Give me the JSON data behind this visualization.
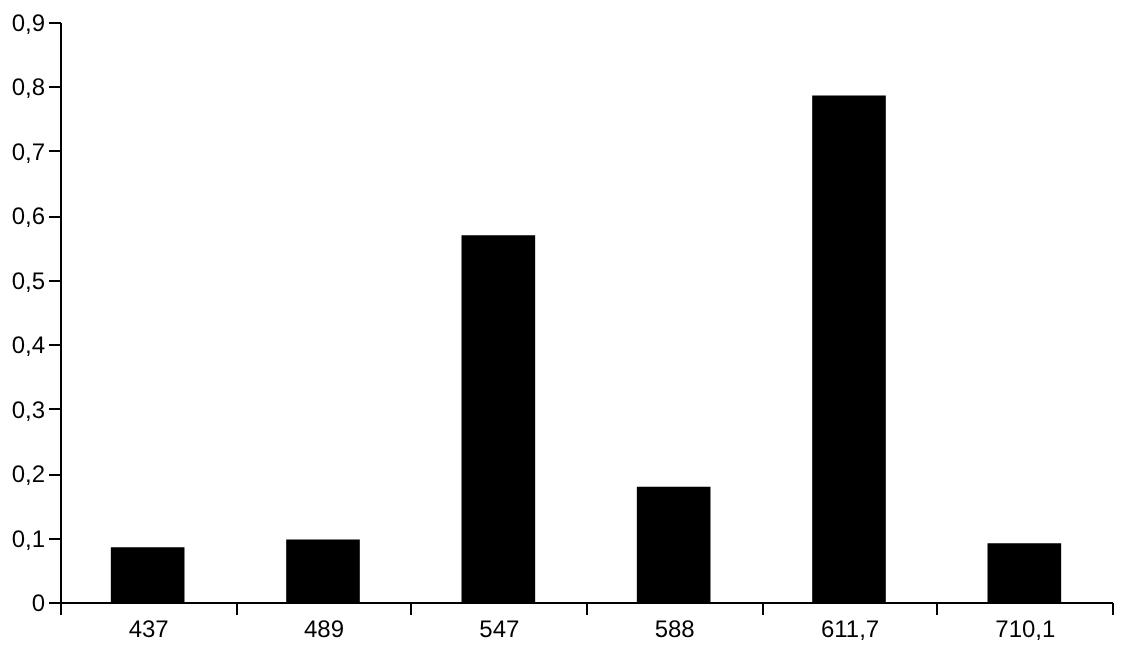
{
  "chart_data": {
    "type": "bar",
    "categories": [
      "437",
      "489",
      "547",
      "588",
      "611,7",
      "710,1"
    ],
    "values": [
      0.085,
      0.097,
      0.569,
      0.179,
      0.786,
      0.091
    ],
    "color": "#000000",
    "ylim": [
      0,
      0.9
    ],
    "yticks": [
      0,
      {
        "value": 0.1,
        "label": "0,1"
      },
      {
        "value": 0.2,
        "label": "0,2"
      },
      {
        "value": 0.3,
        "label": "0,3"
      },
      {
        "value": 0.4,
        "label": "0,4"
      },
      {
        "value": 0.5,
        "label": "0,5"
      },
      {
        "value": 0.6,
        "label": "0,6"
      },
      {
        "value": 0.7,
        "label": "0,7"
      },
      {
        "value": 0.8,
        "label": "0,8"
      },
      {
        "value": 0.9,
        "label": "0,9"
      }
    ],
    "grid": false
  }
}
